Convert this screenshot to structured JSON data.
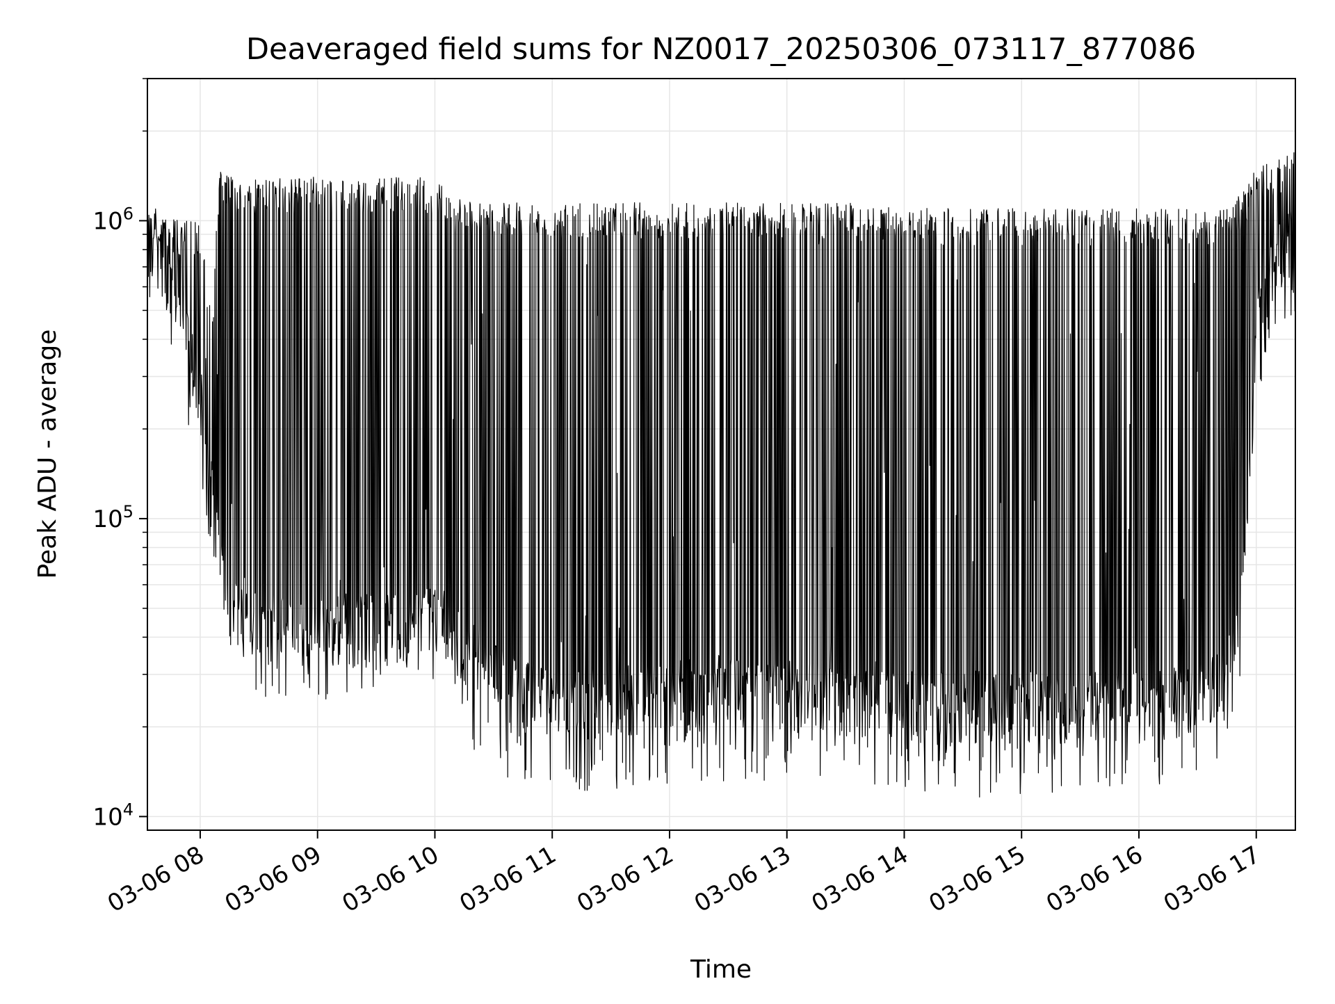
{
  "chart_data": {
    "type": "line",
    "title": "Deaveraged field sums for NZ0017_20250306_073117_877086",
    "xlabel": "Time",
    "ylabel": "Peak ADU - average",
    "yscale": "log",
    "ylim": [
      9000,
      3000000
    ],
    "xlim": [
      "2025-03-06T07:33",
      "2025-03-06T17:20"
    ],
    "grid": true,
    "line_color": "#000000",
    "x_ticks": [
      {
        "value": "2025-03-06T08:00",
        "label": "03-06 08"
      },
      {
        "value": "2025-03-06T09:00",
        "label": "03-06 09"
      },
      {
        "value": "2025-03-06T10:00",
        "label": "03-06 10"
      },
      {
        "value": "2025-03-06T11:00",
        "label": "03-06 11"
      },
      {
        "value": "2025-03-06T12:00",
        "label": "03-06 12"
      },
      {
        "value": "2025-03-06T13:00",
        "label": "03-06 13"
      },
      {
        "value": "2025-03-06T14:00",
        "label": "03-06 14"
      },
      {
        "value": "2025-03-06T15:00",
        "label": "03-06 15"
      },
      {
        "value": "2025-03-06T16:00",
        "label": "03-06 16"
      },
      {
        "value": "2025-03-06T17:00",
        "label": "03-06 17"
      }
    ],
    "y_ticks": [
      {
        "value": 10000,
        "base": "10",
        "exp": "4"
      },
      {
        "value": 100000,
        "base": "10",
        "exp": "5"
      },
      {
        "value": 1000000,
        "base": "10",
        "exp": "6"
      }
    ],
    "series": [
      {
        "x": [
          "2025-03-06T07:33",
          "2025-03-06T07:40",
          "2025-03-06T07:50",
          "2025-03-06T08:00",
          "2025-03-06T08:06",
          "2025-03-06T08:10",
          "2025-03-06T08:15",
          "2025-03-06T08:20",
          "2025-03-06T08:30",
          "2025-03-06T08:40",
          "2025-03-06T09:00",
          "2025-03-06T09:20",
          "2025-03-06T09:40",
          "2025-03-06T10:00",
          "2025-03-06T10:10",
          "2025-03-06T10:20",
          "2025-03-06T10:30",
          "2025-03-06T10:45",
          "2025-03-06T11:00",
          "2025-03-06T11:30",
          "2025-03-06T12:00",
          "2025-03-06T12:30",
          "2025-03-06T13:00",
          "2025-03-06T13:30",
          "2025-03-06T14:00",
          "2025-03-06T14:30",
          "2025-03-06T15:00",
          "2025-03-06T15:30",
          "2025-03-06T16:00",
          "2025-03-06T16:30",
          "2025-03-06T16:45",
          "2025-03-06T16:55",
          "2025-03-06T17:00",
          "2025-03-06T17:10",
          "2025-03-06T17:20"
        ],
        "low": [
          700000,
          700000,
          450000,
          250000,
          110000,
          70000,
          50000,
          42000,
          40000,
          40000,
          40000,
          40000,
          40000,
          45000,
          38000,
          32000,
          27000,
          24000,
          22000,
          23000,
          24000,
          25000,
          24000,
          23000,
          22000,
          22000,
          22000,
          22000,
          22000,
          23000,
          30000,
          70000,
          400000,
          700000,
          800000
        ],
        "high": [
          1200000,
          1100000,
          1000000,
          1000000,
          500000,
          1500000,
          1400000,
          1400000,
          1400000,
          1400000,
          1400000,
          1400000,
          1400000,
          1400000,
          1200000,
          1150000,
          1150000,
          1150000,
          1150000,
          1150000,
          1150000,
          1150000,
          1150000,
          1150000,
          1100000,
          1100000,
          1100000,
          1100000,
          1100000,
          1100000,
          1100000,
          1300000,
          1500000,
          1600000,
          1800000
        ],
        "floor": [
          600000,
          600000,
          350000,
          180000,
          80000,
          45000,
          36000,
          33000,
          33000,
          33000,
          33000,
          33000,
          33000,
          30000,
          25000,
          21000,
          18000,
          17000,
          16000,
          16000,
          17000,
          17500,
          17000,
          16500,
          15500,
          15500,
          15000,
          15500,
          16000,
          17000,
          22000,
          50000,
          300000,
          500000,
          600000
        ]
      }
    ]
  }
}
